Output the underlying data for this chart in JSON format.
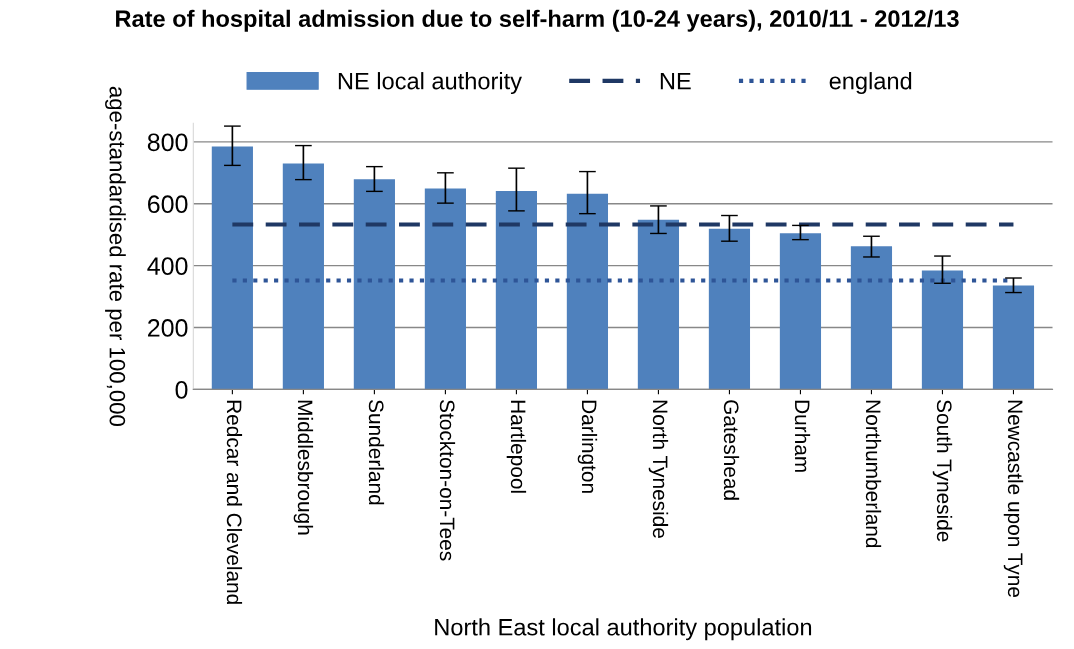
{
  "chart_data": {
    "type": "bar",
    "title": "Rate of hospital admission due to self-harm (10-24 years), 2010/11 - 2012/13",
    "xlabel": "North East local authority population",
    "ylabel": "age-standardised rate per 100,000",
    "categories": [
      "Redcar and Cleveland",
      "Middlesbrough",
      "Sunderland",
      "Stockton-on-Tees",
      "Hartlepool",
      "Darlington",
      "North Tyneside",
      "Gateshead",
      "Durham",
      "Northumberland",
      "South Tyneside",
      "Newcastle upon Tyne"
    ],
    "series": [
      {
        "name": "NE local authority",
        "color": "#4f81bd",
        "values": [
          785,
          730,
          679,
          649,
          641,
          632,
          548,
          519,
          505,
          463,
          384,
          336
        ],
        "errors": [
          [
            724,
            851
          ],
          [
            678,
            788
          ],
          [
            640,
            720
          ],
          [
            602,
            700
          ],
          [
            577,
            715
          ],
          [
            568,
            704
          ],
          [
            504,
            593
          ],
          [
            479,
            562
          ],
          [
            484,
            530
          ],
          [
            428,
            495
          ],
          [
            343,
            431
          ],
          [
            313,
            360
          ]
        ]
      }
    ],
    "ref_lines": [
      {
        "axis": "y",
        "value": 533,
        "label": "NE",
        "color": "#1f3864",
        "line_style": "dashed"
      },
      {
        "axis": "y",
        "value": 352,
        "label": "england",
        "color": "#2e5597",
        "line_style": "dotted"
      }
    ],
    "ylim": [
      0,
      860
    ],
    "yticks": [
      0,
      200,
      400,
      600,
      800
    ],
    "grid": "y",
    "legend": "top"
  }
}
